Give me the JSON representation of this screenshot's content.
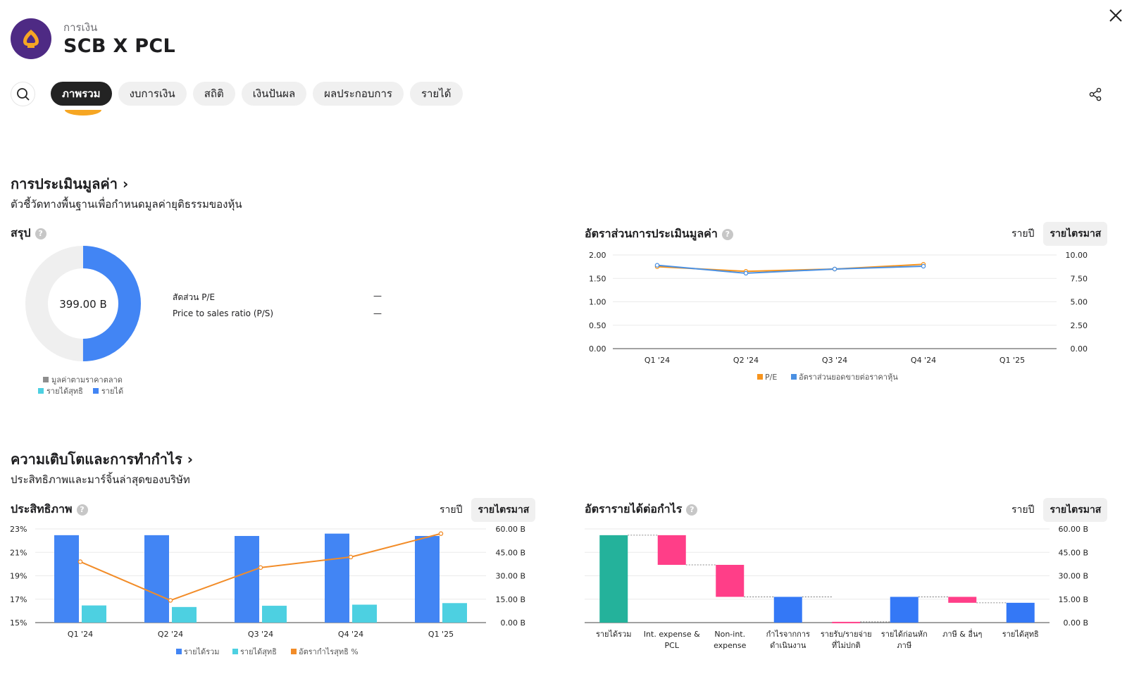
{
  "header": {
    "category": "การเงิน",
    "company": "SCB X PCL"
  },
  "tabs": [
    "ภาพรวม",
    "งบการเงิน",
    "สถิติ",
    "เงินปันผล",
    "ผลประกอบการ",
    "รายได้"
  ],
  "valuation": {
    "title": "การประเมินมูลค่า ›",
    "subtitle": "ตัวชี้วัดทางพื้นฐานเพื่อกำหนดมูลค่ายุติธรรมของหุ้น",
    "summary": {
      "title": "สรุป",
      "center_value": "399.00 B",
      "donut_fraction": 0.5,
      "rows": [
        {
          "label": "สัดส่วน P/E",
          "value": "—"
        },
        {
          "label": "Price to sales ratio (P/S)",
          "value": "—"
        }
      ],
      "legend": {
        "market_value": "มูลค่าตามราคาตลาด",
        "net_income": "รายได้สุทธิ",
        "revenue": "รายได้"
      }
    },
    "ratio_chart": {
      "title": "อัตราส่วนการประเมินมูลค่า",
      "toggle": [
        "รายปี",
        "รายไตรมาส"
      ]
    }
  },
  "growth": {
    "title": "ความเติบโตและการทำกำไร ›",
    "subtitle": "ประสิทธิภาพและมาร์จิ้นล่าสุดของบริษัท",
    "efficiency_title": "ประสิทธิภาพ",
    "waterfall_title": "อัตรารายได้ต่อกำไร",
    "toggle": [
      "รายปี",
      "รายไตรมาส"
    ]
  },
  "colors": {
    "pe": "#f7941d",
    "ps": "#4a90e2",
    "revenue": "#4285f4",
    "net": "#4dd0e1",
    "margin": "#f28c28",
    "wf_green": "#24b29b",
    "wf_pink": "#ff3e88",
    "wf_blue": "#3478f6"
  },
  "chart_data": [
    {
      "type": "line",
      "title": "อัตราส่วนการประเมินมูลค่า",
      "categories": [
        "Q1 '24",
        "Q2 '24",
        "Q3 '24",
        "Q4 '24",
        "Q1 '25"
      ],
      "y_ticks": [
        "0.00",
        "0.50",
        "1.00",
        "1.50",
        "2.00"
      ],
      "y2_ticks": [
        "0.00",
        "2.50",
        "5.00",
        "7.50",
        "10.00"
      ],
      "ylim": [
        0,
        2
      ],
      "y2lim": [
        0,
        10
      ],
      "series": [
        {
          "name": "P/E",
          "axis": "left",
          "values": [
            1.75,
            1.65,
            1.7,
            1.8,
            null
          ]
        },
        {
          "name": "อัตราส่วนยอดขายต่อราคาหุ้น",
          "axis": "left",
          "values": [
            1.78,
            1.61,
            1.7,
            1.76,
            null
          ]
        }
      ]
    },
    {
      "type": "bar",
      "title": "ประสิทธิภาพ",
      "categories": [
        "Q1 '24",
        "Q2 '24",
        "Q3 '24",
        "Q4 '24",
        "Q1 '25"
      ],
      "y_ticks": [
        "15%",
        "17%",
        "19%",
        "21%",
        "23%"
      ],
      "y2_ticks": [
        "0.00 B",
        "15.00 B",
        "30.00 B",
        "45.00 B",
        "60.00 B"
      ],
      "ylim": [
        15,
        23
      ],
      "y2lim": [
        0,
        60
      ],
      "series": [
        {
          "name": "รายได้รวม",
          "axis": "right",
          "values": [
            56,
            56,
            55.5,
            57,
            55.5
          ]
        },
        {
          "name": "รายได้สุทธิ",
          "axis": "right",
          "values": [
            11,
            10,
            10.8,
            11.5,
            12.5
          ]
        },
        {
          "name": "อัตรากำไรสุทธิ %",
          "axis": "left",
          "type": "line",
          "values": [
            20.2,
            16.9,
            19.7,
            20.6,
            22.6
          ]
        }
      ]
    },
    {
      "type": "bar",
      "subtype": "waterfall",
      "title": "อัตรารายได้ต่อกำไร",
      "categories": [
        "รายได้รวม",
        "Int. expense & PCL",
        "Non-int. expense",
        "กำไรจากการดำเนินงาน",
        "รายรับ/รายจ่ายที่ไม่ปกติ",
        "รายได้ก่อนหักภาษี",
        "ภาษี & อื่นๆ",
        "รายได้สุทธิ"
      ],
      "labels_wrapped": [
        [
          "รายได้รวม"
        ],
        [
          "Int. expense &",
          "PCL"
        ],
        [
          "Non-int.",
          "expense"
        ],
        [
          "กำไรจากการ",
          "ดำเนินงาน"
        ],
        [
          "รายรับ/รายจ่าย",
          "ที่ไม่ปกติ"
        ],
        [
          "รายได้ก่อนหัก",
          "ภาษี"
        ],
        [
          "ภาษี & อื่นๆ"
        ],
        [
          "รายได้สุทธิ"
        ]
      ],
      "y_ticks": [
        "0.00 B",
        "15.00 B",
        "30.00 B",
        "45.00 B",
        "60.00 B"
      ],
      "ylim": [
        0,
        60
      ],
      "bars": [
        {
          "start": 0,
          "end": 56,
          "kind": "total"
        },
        {
          "start": 56,
          "end": 37,
          "kind": "decrease"
        },
        {
          "start": 37,
          "end": 16.5,
          "kind": "decrease"
        },
        {
          "start": 0,
          "end": 16.5,
          "kind": "subtotal"
        },
        {
          "start": 0,
          "end": 0.5,
          "kind": "decrease"
        },
        {
          "start": 0,
          "end": 16.5,
          "kind": "subtotal"
        },
        {
          "start": 16.5,
          "end": 12.7,
          "kind": "decrease"
        },
        {
          "start": 0,
          "end": 12.7,
          "kind": "total"
        }
      ]
    }
  ]
}
